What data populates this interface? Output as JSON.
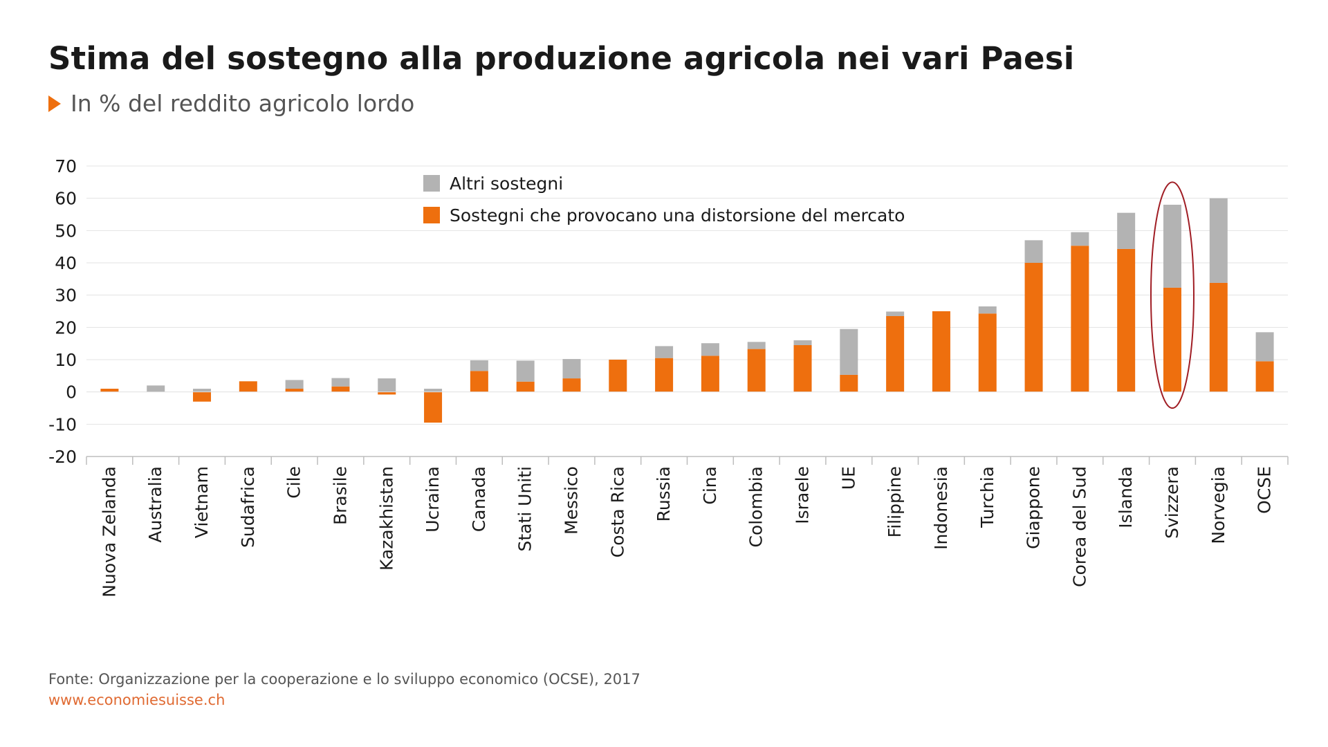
{
  "header": {
    "title": "Stima del sostegno alla produzione agricola nei vari Paesi",
    "subtitle": "In % del reddito agricolo lordo"
  },
  "footer": {
    "source": "Fonte: Organizzazione per la cooperazione e lo sviluppo economico (OCSE), 2017",
    "url": "www.economiesuisse.ch"
  },
  "colors": {
    "distorting": "#ee6f0e",
    "other": "#b3b3b3",
    "highlight_ellipse": "#a01d24",
    "grid": "#e3e3e3"
  },
  "chart_data": {
    "type": "bar",
    "stacked": true,
    "title": "Stima del sostegno alla produzione agricola nei vari Paesi",
    "subtitle": "In % del reddito agricolo lordo",
    "ylim": [
      -20,
      70
    ],
    "yticks": [
      -20,
      -10,
      0,
      10,
      20,
      30,
      40,
      50,
      60,
      70
    ],
    "grid": true,
    "legend_position": "top-center",
    "categories": [
      "Nuova Zelanda",
      "Australia",
      "Vietnam",
      "Sudafrica",
      "Cile",
      "Brasile",
      "Kazakhistan",
      "Ucraina",
      "Canada",
      "Stati Uniti",
      "Messico",
      "Costa Rica",
      "Russia",
      "Cina",
      "Colombia",
      "Israele",
      "UE",
      "Filippine",
      "Indonesia",
      "Turchia",
      "Giappone",
      "Corea del Sud",
      "Islanda",
      "Svizzera",
      "Norvegia",
      "OCSE"
    ],
    "series": [
      {
        "name": "Sostegni che provocano una distorsione del mercato",
        "values": [
          1.0,
          0.0,
          -3.0,
          3.3,
          1.0,
          1.7,
          -0.8,
          -9.5,
          6.5,
          3.2,
          4.2,
          10.0,
          10.5,
          11.2,
          13.3,
          14.5,
          5.3,
          23.5,
          25.0,
          24.3,
          40.0,
          45.3,
          44.3,
          32.3,
          33.8,
          9.5
        ]
      },
      {
        "name": "Altri sostegni",
        "values": [
          0.0,
          2.0,
          1.0,
          0.0,
          2.7,
          2.6,
          4.2,
          1.0,
          3.3,
          6.5,
          6.0,
          0.0,
          3.7,
          3.9,
          2.2,
          1.5,
          14.2,
          1.4,
          0.0,
          2.2,
          7.0,
          4.2,
          11.2,
          25.7,
          26.2,
          9.0
        ]
      }
    ],
    "highlighted_category": "Svizzera"
  }
}
